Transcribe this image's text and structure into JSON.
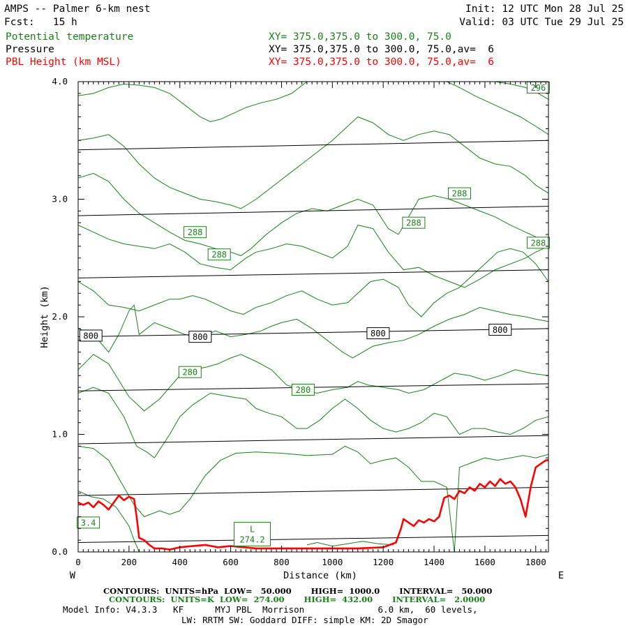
{
  "header": {
    "title": "AMPS -- Palmer 6-km nest",
    "fcst": "Fcst:   15 h",
    "init": "Init: 12 UTC Mon 28 Jul 25",
    "valid": "Valid: 03 UTC Tue 29 Jul 25",
    "fields": [
      {
        "name": "Potential temperature",
        "xy": "XY= 375.0,375.0 to 300.0, 75.0",
        "color": "#1a7f1a"
      },
      {
        "name": "Pressure",
        "xy": "XY= 375.0,375.0 to 300.0, 75.0,av=  6",
        "color": "#000000"
      },
      {
        "name": "PBL Height (km MSL)",
        "xy": "XY= 375.0,375.0 to 300.0, 75.0,av=  6",
        "color": "#ff0000"
      }
    ]
  },
  "footer": {
    "pressure_contours": "CONTOURS:  UNITS=hPa  LOW=   50.000       HIGH=  1000.0       INTERVAL=   50.000",
    "theta_contours": "CONTOURS:  UNITS=K  LOW=  274.00       HIGH=  432.00       INTERVAL=   2.0000",
    "model_info_1": "Model Info: V4.3.3   KF      MYJ PBL  Morrison              6.0 km,  60 levels,",
    "model_info_2": "LW: RRTM SW: Goddard DIFF: simple KM: 2D Smagor"
  },
  "chart_data": {
    "type": "line",
    "xlabel": "Distance (km)",
    "ylabel": "Height (km)",
    "xlim": [
      0,
      1850
    ],
    "ylim": [
      0,
      4.0
    ],
    "x_ticks": [
      0,
      200,
      400,
      600,
      800,
      1000,
      1200,
      1400,
      1600,
      1800
    ],
    "y_ticks": [
      0.0,
      1.0,
      2.0,
      3.0,
      4.0
    ],
    "x_tick_labels": [
      "0",
      "200",
      "400",
      "600",
      "800",
      "1000",
      "1200",
      "1400",
      "1600",
      "1800"
    ],
    "y_tick_labels": [
      "0.0",
      "1.0",
      "2.0",
      "3.0",
      "4.0"
    ],
    "left_end_label": "W",
    "right_end_label": "E",
    "colors": {
      "theta": "#1a7f1a",
      "pressure": "#000000",
      "pbl": "#ff0000"
    },
    "pressure_lines": [
      {
        "x": [
          0,
          1850
        ],
        "y": [
          0.08,
          0.14
        ]
      },
      {
        "x": [
          0,
          1850
        ],
        "y": [
          0.48,
          0.55
        ]
      },
      {
        "x": [
          0,
          1850
        ],
        "y": [
          0.92,
          0.99
        ]
      },
      {
        "x": [
          0,
          1850
        ],
        "y": [
          1.37,
          1.43
        ]
      },
      {
        "x": [
          0,
          1850
        ],
        "y": [
          1.83,
          1.9
        ]
      },
      {
        "x": [
          0,
          1850
        ],
        "y": [
          2.33,
          2.4
        ]
      },
      {
        "x": [
          0,
          1850
        ],
        "y": [
          2.86,
          2.94
        ]
      },
      {
        "x": [
          0,
          1850
        ],
        "y": [
          3.42,
          3.5
        ]
      }
    ],
    "pressure_labels": [
      {
        "text": "800",
        "x": 50,
        "y": 1.84
      },
      {
        "text": "800",
        "x": 480,
        "y": 1.83
      },
      {
        "text": "800",
        "x": 1180,
        "y": 1.86
      },
      {
        "text": "800",
        "x": 1660,
        "y": 1.89
      }
    ],
    "theta_lines": [
      {
        "x": [
          0,
          50,
          100,
          150,
          200,
          220,
          240,
          300
        ],
        "y": [
          0.52,
          0.47,
          0.45,
          0.38,
          0.22,
          0.1,
          0.0,
          0.0
        ]
      },
      {
        "x": [
          0,
          60,
          120,
          180,
          220,
          260,
          320,
          360,
          400,
          440,
          500,
          560,
          620,
          700,
          800,
          900,
          1000,
          1050,
          1100,
          1150,
          1200,
          1250,
          1300,
          1350,
          1400,
          1450,
          1480,
          1500,
          1550,
          1600,
          1650,
          1700,
          1750,
          1800,
          1850
        ],
        "y": [
          0.9,
          0.88,
          0.78,
          0.55,
          0.4,
          0.3,
          0.35,
          0.32,
          0.35,
          0.45,
          0.65,
          0.78,
          0.84,
          0.85,
          0.84,
          0.82,
          0.83,
          0.9,
          0.85,
          0.75,
          0.78,
          0.8,
          0.72,
          0.6,
          0.6,
          0.55,
          0.0,
          0.72,
          0.76,
          0.8,
          0.78,
          0.8,
          0.82,
          0.8,
          0.83
        ]
      },
      {
        "x": [
          0,
          60,
          120,
          180,
          230,
          270,
          300,
          360,
          400,
          450,
          520,
          600,
          660,
          700,
          750,
          800,
          860,
          900,
          950,
          1000,
          1050,
          1100,
          1150,
          1200,
          1250,
          1300,
          1350,
          1400,
          1450,
          1500,
          1550,
          1600,
          1650,
          1700,
          1750,
          1800,
          1850
        ],
        "y": [
          1.35,
          1.4,
          1.35,
          1.15,
          0.9,
          0.85,
          0.8,
          1.0,
          1.15,
          1.25,
          1.35,
          1.32,
          1.3,
          1.22,
          1.18,
          1.15,
          1.05,
          1.05,
          1.12,
          1.22,
          1.3,
          1.22,
          1.12,
          1.05,
          1.02,
          1.05,
          1.1,
          1.18,
          1.15,
          1.0,
          1.05,
          1.05,
          1.02,
          1.0,
          1.05,
          1.12,
          1.15
        ]
      },
      {
        "x": [
          0,
          60,
          120,
          200,
          260,
          320,
          360,
          400,
          450,
          500,
          550,
          600,
          640,
          700,
          760,
          820,
          880,
          940,
          1000,
          1060,
          1100,
          1140,
          1200,
          1260,
          1300,
          1360,
          1420,
          1480,
          1540,
          1600,
          1660,
          1720,
          1780,
          1850
        ],
        "y": [
          1.55,
          1.68,
          1.6,
          1.32,
          1.2,
          1.3,
          1.4,
          1.5,
          1.55,
          1.57,
          1.6,
          1.65,
          1.68,
          1.62,
          1.55,
          1.42,
          1.38,
          1.35,
          1.38,
          1.4,
          1.45,
          1.42,
          1.4,
          1.38,
          1.35,
          1.38,
          1.45,
          1.52,
          1.5,
          1.46,
          1.5,
          1.55,
          1.52,
          1.5
        ]
      },
      {
        "x": [
          0,
          60,
          120,
          160,
          200,
          220,
          240,
          300,
          360,
          420,
          480,
          540,
          600,
          660,
          720,
          760,
          800,
          860,
          920,
          980,
          1040,
          1080,
          1120,
          1160,
          1220,
          1280,
          1340,
          1400,
          1460,
          1520,
          1580,
          1640,
          1700,
          1760,
          1800,
          1850
        ],
        "y": [
          1.9,
          1.85,
          1.7,
          1.85,
          2.05,
          2.1,
          1.85,
          1.95,
          1.9,
          1.85,
          1.82,
          1.88,
          1.83,
          1.85,
          1.88,
          1.92,
          1.95,
          1.98,
          1.9,
          1.8,
          1.7,
          1.65,
          1.7,
          1.75,
          1.78,
          1.8,
          1.85,
          1.92,
          1.98,
          2.02,
          2.08,
          2.05,
          2.02,
          2.0,
          1.98,
          1.96
        ]
      },
      {
        "x": [
          0,
          60,
          120,
          180,
          240,
          300,
          360,
          400,
          450,
          500,
          550,
          600,
          650,
          700,
          760,
          820,
          880,
          940,
          1000,
          1060,
          1100,
          1150,
          1200,
          1260,
          1300,
          1350,
          1400,
          1450,
          1500,
          1550,
          1600,
          1650,
          1700,
          1750,
          1800,
          1850
        ],
        "y": [
          2.3,
          2.22,
          2.1,
          2.08,
          2.05,
          2.1,
          2.15,
          2.15,
          2.18,
          2.15,
          2.1,
          2.05,
          2.02,
          2.08,
          2.12,
          2.18,
          2.22,
          2.15,
          2.1,
          2.12,
          2.2,
          2.3,
          2.32,
          2.25,
          2.1,
          2.0,
          2.12,
          2.2,
          2.25,
          2.35,
          2.45,
          2.55,
          2.58,
          2.55,
          2.45,
          2.3
        ]
      },
      {
        "x": [
          0,
          60,
          120,
          180,
          240,
          300,
          360,
          420,
          480,
          540,
          600,
          660,
          700,
          760,
          820,
          880,
          940,
          1000,
          1060,
          1100,
          1160,
          1220,
          1280,
          1340,
          1400,
          1460,
          1520,
          1580,
          1640,
          1700,
          1760,
          1800,
          1850
        ],
        "y": [
          2.78,
          2.72,
          2.66,
          2.62,
          2.6,
          2.58,
          2.62,
          2.55,
          2.45,
          2.42,
          2.4,
          2.5,
          2.55,
          2.58,
          2.62,
          2.6,
          2.55,
          2.5,
          2.6,
          2.78,
          2.75,
          2.55,
          2.4,
          2.42,
          2.35,
          2.3,
          2.25,
          2.32,
          2.4,
          2.45,
          2.5,
          2.55,
          2.6
        ]
      },
      {
        "x": [
          0,
          60,
          120,
          180,
          240,
          300,
          360,
          420,
          480,
          540,
          600,
          640,
          680,
          740,
          800,
          860,
          920,
          980,
          1040,
          1100,
          1160,
          1220,
          1260,
          1300,
          1340,
          1400,
          1460,
          1520,
          1580,
          1640,
          1700,
          1760,
          1800,
          1850
        ],
        "y": [
          3.18,
          3.22,
          3.15,
          3.0,
          2.88,
          2.8,
          2.72,
          2.65,
          2.62,
          2.58,
          2.55,
          2.52,
          2.58,
          2.7,
          2.8,
          2.88,
          2.92,
          2.9,
          2.95,
          3.0,
          2.95,
          2.75,
          2.7,
          2.85,
          3.0,
          3.03,
          3.0,
          2.95,
          2.9,
          2.85,
          2.78,
          2.72,
          2.68,
          2.58
        ]
      },
      {
        "x": [
          0,
          60,
          120,
          180,
          240,
          300,
          360,
          420,
          480,
          540,
          600,
          640,
          700,
          760,
          820,
          880,
          940,
          1000,
          1060,
          1100,
          1160,
          1220,
          1280,
          1340,
          1400,
          1460,
          1520,
          1580,
          1640,
          1700,
          1760,
          1800,
          1850
        ],
        "y": [
          3.5,
          3.52,
          3.55,
          3.45,
          3.3,
          3.18,
          3.1,
          3.05,
          3.0,
          2.98,
          2.95,
          2.92,
          3.0,
          3.1,
          3.2,
          3.3,
          3.4,
          3.5,
          3.62,
          3.7,
          3.65,
          3.55,
          3.5,
          3.55,
          3.58,
          3.55,
          3.45,
          3.35,
          3.3,
          3.28,
          3.2,
          3.12,
          3.05
        ]
      },
      {
        "x": [
          0,
          60,
          120,
          180,
          240,
          300,
          360,
          420,
          480,
          520,
          560,
          600,
          660,
          720,
          780,
          840,
          900
        ],
        "y": [
          3.88,
          3.9,
          3.95,
          3.98,
          3.97,
          3.95,
          3.9,
          3.8,
          3.7,
          3.66,
          3.68,
          3.72,
          3.78,
          3.82,
          3.85,
          3.9,
          4.0
        ]
      },
      {
        "x": [
          1450,
          1500,
          1560,
          1620,
          1680,
          1740,
          1800,
          1850
        ],
        "y": [
          4.0,
          3.95,
          3.88,
          3.82,
          3.76,
          3.7,
          3.62,
          3.55
        ]
      },
      {
        "x": [
          1640,
          1700,
          1760,
          1810,
          1850
        ],
        "y": [
          4.0,
          3.98,
          3.95,
          3.9,
          3.85
        ]
      },
      {
        "x": [
          900,
          940,
          1000,
          1060,
          1120,
          1180,
          1240
        ],
        "y": [
          0.06,
          0.08,
          0.05,
          0.07,
          0.09,
          0.07,
          0.06
        ]
      }
    ],
    "theta_labels": [
      {
        "text": "296",
        "x": 1810,
        "y": 3.95
      },
      {
        "text": "288",
        "x": 1500,
        "y": 3.05
      },
      {
        "text": "288",
        "x": 1320,
        "y": 2.8
      },
      {
        "text": "288",
        "x": 1810,
        "y": 2.63
      },
      {
        "text": "288",
        "x": 460,
        "y": 2.72
      },
      {
        "text": "288",
        "x": 555,
        "y": 2.53
      },
      {
        "text": "280",
        "x": 440,
        "y": 1.53
      },
      {
        "text": "280",
        "x": 885,
        "y": 1.38
      },
      {
        "text": "3.4",
        "x": 40,
        "y": 0.25
      }
    ],
    "low_marker": {
      "letter": "L",
      "value": "274.2",
      "x": 685,
      "y": 0.14
    },
    "pbl_height": {
      "x": [
        0,
        20,
        40,
        60,
        80,
        100,
        120,
        140,
        160,
        180,
        200,
        220,
        230,
        240,
        260,
        280,
        300,
        330,
        360,
        400,
        450,
        500,
        550,
        600,
        700,
        800,
        900,
        1000,
        1100,
        1200,
        1250,
        1270,
        1280,
        1300,
        1320,
        1340,
        1360,
        1380,
        1400,
        1420,
        1440,
        1460,
        1480,
        1500,
        1520,
        1540,
        1560,
        1580,
        1600,
        1620,
        1640,
        1660,
        1680,
        1700,
        1720,
        1740,
        1760,
        1780,
        1800,
        1820,
        1840,
        1850
      ],
      "y": [
        0.42,
        0.4,
        0.42,
        0.38,
        0.43,
        0.4,
        0.36,
        0.42,
        0.48,
        0.44,
        0.47,
        0.45,
        0.3,
        0.12,
        0.1,
        0.06,
        0.03,
        0.03,
        0.02,
        0.04,
        0.05,
        0.06,
        0.04,
        0.05,
        0.03,
        0.03,
        0.03,
        0.03,
        0.03,
        0.04,
        0.08,
        0.2,
        0.28,
        0.25,
        0.22,
        0.27,
        0.25,
        0.28,
        0.26,
        0.3,
        0.46,
        0.48,
        0.45,
        0.52,
        0.5,
        0.55,
        0.52,
        0.58,
        0.55,
        0.6,
        0.56,
        0.62,
        0.58,
        0.6,
        0.55,
        0.45,
        0.3,
        0.55,
        0.72,
        0.75,
        0.78,
        0.78
      ]
    }
  }
}
